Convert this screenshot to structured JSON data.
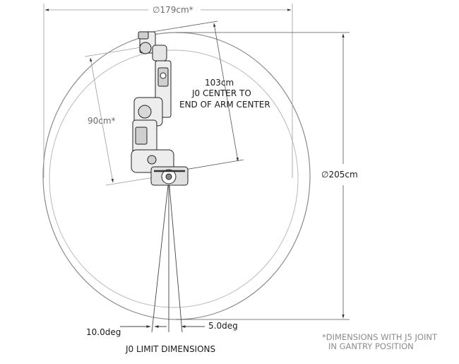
{
  "labels": {
    "top_width": "∅179cm*",
    "height": "∅205cm",
    "reach": "103cm",
    "reach_desc_1": "J0 CENTER TO",
    "reach_desc_2": "END OF ARM CENTER",
    "inner_reach": "90cm*",
    "angle_left": "10.0deg",
    "angle_right": "5.0deg",
    "limits_title": "J0 LIMIT DIMENSIONS",
    "note_1": "*DIMENSIONS WITH J5 JOINT",
    "note_2": "IN GANTRY POSITION"
  }
}
